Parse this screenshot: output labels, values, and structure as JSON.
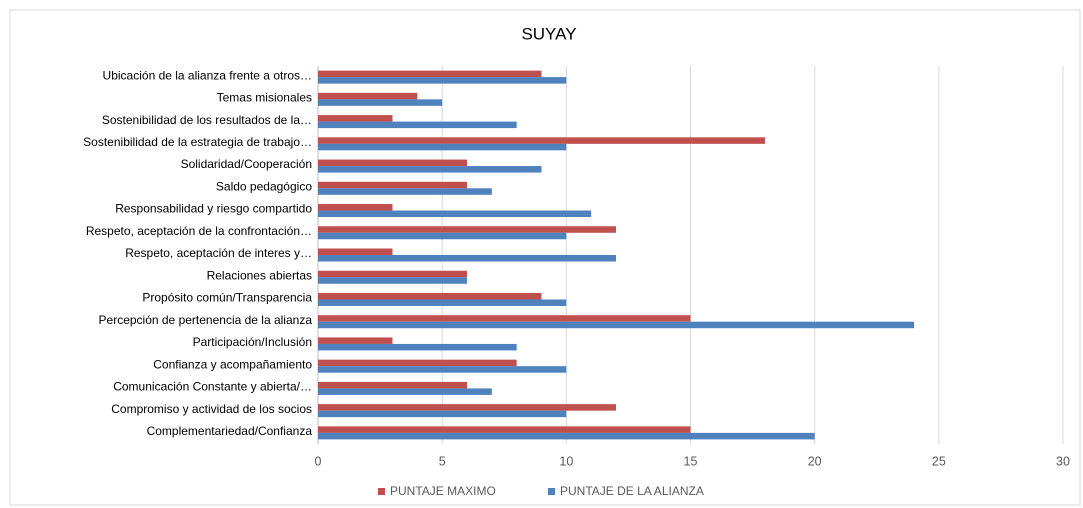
{
  "chart_data": {
    "type": "barh",
    "title": "SUYAY",
    "categories": [
      "Ubicación de la alianza frente a otros…",
      "Temas misionales",
      "Sostenibilidad de los resultados de la…",
      "Sostenibilidad de la estrategia de trabajo…",
      "Solidaridad/Cooperación",
      "Saldo pedagógico",
      "Responsabilidad y riesgo compartido",
      "Respeto, aceptación de la confrontación…",
      "Respeto, aceptación de interes y…",
      "Relaciones abiertas",
      "Propósito común/Transparencia",
      "Percepción de pertenencia de la alianza",
      "Participación/Inclusión",
      "Confianza y acompañamiento",
      "Comunicación Constante y abierta/…",
      "Compromiso y actividad de los socios",
      "Complementariedad/Confianza"
    ],
    "series": [
      {
        "name": "PUNTAJE MAXIMO",
        "color": "#c0504d",
        "values": [
          9,
          4,
          3,
          18,
          6,
          6,
          3,
          12,
          3,
          6,
          9,
          15,
          3,
          8,
          6,
          12,
          15
        ]
      },
      {
        "name": "PUNTAJE DE LA ALIANZA",
        "color": "#4f81bd",
        "values": [
          10,
          5,
          8,
          10,
          9,
          7,
          11,
          10,
          12,
          6,
          10,
          24,
          8,
          10,
          7,
          10,
          20
        ]
      }
    ],
    "xlim": [
      0,
      30
    ],
    "xticks": [
      0,
      5,
      10,
      15,
      20,
      25,
      30
    ],
    "grid": true,
    "legend": "bottom"
  }
}
